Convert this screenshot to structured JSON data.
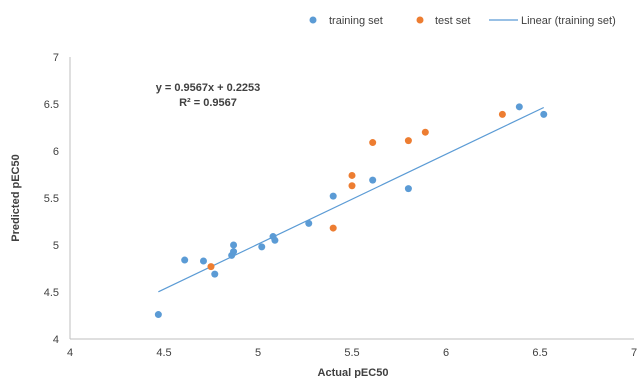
{
  "chart_data": {
    "type": "scatter",
    "xlabel": "Actual pEC50",
    "ylabel": "Predicted pEC50",
    "xlim": [
      4,
      7
    ],
    "ylim": [
      4,
      7
    ],
    "xticks": [
      4,
      4.5,
      5,
      5.5,
      6,
      6.5,
      7
    ],
    "yticks": [
      4,
      4.5,
      5,
      5.5,
      6,
      6.5,
      7
    ],
    "xtick_labels": [
      "4",
      "4.5",
      "5",
      "5.5",
      "6",
      "6.5",
      "7"
    ],
    "ytick_labels": [
      "4",
      "4.5",
      "5",
      "5.5",
      "6",
      "6.5",
      "7"
    ],
    "grid": false,
    "legend_position": "top",
    "series": [
      {
        "name": "training set",
        "color": "#5b9bd5",
        "points": [
          {
            "x": 4.47,
            "y": 4.26
          },
          {
            "x": 4.61,
            "y": 4.84
          },
          {
            "x": 4.71,
            "y": 4.83
          },
          {
            "x": 4.77,
            "y": 4.69
          },
          {
            "x": 4.86,
            "y": 4.89
          },
          {
            "x": 4.87,
            "y": 4.93
          },
          {
            "x": 4.87,
            "y": 5.0
          },
          {
            "x": 5.02,
            "y": 4.98
          },
          {
            "x": 5.08,
            "y": 5.09
          },
          {
            "x": 5.09,
            "y": 5.05
          },
          {
            "x": 5.27,
            "y": 5.23
          },
          {
            "x": 5.4,
            "y": 5.52
          },
          {
            "x": 5.61,
            "y": 5.69
          },
          {
            "x": 5.8,
            "y": 5.6
          },
          {
            "x": 6.39,
            "y": 6.47
          },
          {
            "x": 6.52,
            "y": 6.39
          }
        ]
      },
      {
        "name": "test set",
        "color": "#ed7d31",
        "points": [
          {
            "x": 4.75,
            "y": 4.77
          },
          {
            "x": 5.4,
            "y": 5.18
          },
          {
            "x": 5.5,
            "y": 5.63
          },
          {
            "x": 5.5,
            "y": 5.74
          },
          {
            "x": 5.61,
            "y": 6.09
          },
          {
            "x": 5.8,
            "y": 6.11
          },
          {
            "x": 5.89,
            "y": 6.2
          },
          {
            "x": 6.3,
            "y": 6.39
          }
        ]
      }
    ],
    "trendline": {
      "name": "Linear (training set)",
      "color": "#5b9bd5",
      "slope": 0.9567,
      "intercept": 0.2253,
      "x_start": 4.47,
      "x_end": 6.52
    },
    "annotations": {
      "equation": "y = 0.9567x + 0.2253",
      "r_squared": "R² = 0.9567"
    }
  }
}
